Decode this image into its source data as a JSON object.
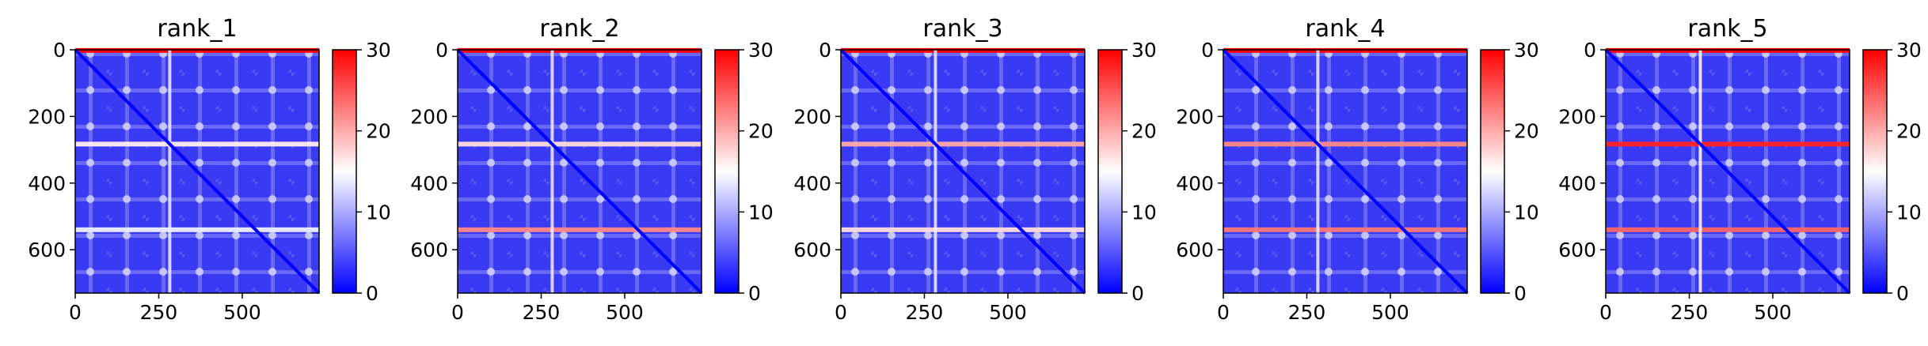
{
  "chart_data": [
    {
      "type": "heatmap",
      "title": "rank_1",
      "xlabel": "",
      "ylabel": "",
      "x_ticks": [
        0,
        250,
        500
      ],
      "y_ticks": [
        0,
        200,
        400,
        600
      ],
      "xlim": [
        0,
        730
      ],
      "ylim": [
        730,
        0
      ],
      "colorbar": {
        "min": 0,
        "max": 30,
        "ticks": [
          0,
          10,
          20,
          30
        ],
        "colormap": "bwr"
      },
      "highlights": [
        {
          "orientation": "horizontal",
          "position": 2,
          "value": 30
        },
        {
          "orientation": "horizontal",
          "position": 283,
          "value": 16
        },
        {
          "orientation": "horizontal",
          "position": 540,
          "value": 14
        },
        {
          "orientation": "vertical",
          "position": 283,
          "value": 14
        }
      ]
    },
    {
      "type": "heatmap",
      "title": "rank_2",
      "xlabel": "",
      "ylabel": "",
      "x_ticks": [
        0,
        250,
        500
      ],
      "y_ticks": [
        0,
        200,
        400,
        600
      ],
      "xlim": [
        0,
        730
      ],
      "ylim": [
        730,
        0
      ],
      "colorbar": {
        "min": 0,
        "max": 30,
        "ticks": [
          0,
          10,
          20,
          30
        ],
        "colormap": "bwr"
      },
      "highlights": [
        {
          "orientation": "horizontal",
          "position": 2,
          "value": 30
        },
        {
          "orientation": "horizontal",
          "position": 283,
          "value": 17
        },
        {
          "orientation": "horizontal",
          "position": 540,
          "value": 22
        },
        {
          "orientation": "vertical",
          "position": 283,
          "value": 14
        }
      ]
    },
    {
      "type": "heatmap",
      "title": "rank_3",
      "xlabel": "",
      "ylabel": "",
      "x_ticks": [
        0,
        250,
        500
      ],
      "y_ticks": [
        0,
        200,
        400,
        600
      ],
      "xlim": [
        0,
        730
      ],
      "ylim": [
        730,
        0
      ],
      "colorbar": {
        "min": 0,
        "max": 30,
        "ticks": [
          0,
          10,
          20,
          30
        ],
        "colormap": "bwr"
      },
      "highlights": [
        {
          "orientation": "horizontal",
          "position": 2,
          "value": 30
        },
        {
          "orientation": "horizontal",
          "position": 283,
          "value": 20
        },
        {
          "orientation": "horizontal",
          "position": 540,
          "value": 17
        },
        {
          "orientation": "vertical",
          "position": 283,
          "value": 14
        }
      ]
    },
    {
      "type": "heatmap",
      "title": "rank_4",
      "xlabel": "",
      "ylabel": "",
      "x_ticks": [
        0,
        250,
        500
      ],
      "y_ticks": [
        0,
        200,
        400,
        600
      ],
      "xlim": [
        0,
        730
      ],
      "ylim": [
        730,
        0
      ],
      "colorbar": {
        "min": 0,
        "max": 30,
        "ticks": [
          0,
          10,
          20,
          30
        ],
        "colormap": "bwr"
      },
      "highlights": [
        {
          "orientation": "horizontal",
          "position": 2,
          "value": 30
        },
        {
          "orientation": "horizontal",
          "position": 283,
          "value": 22
        },
        {
          "orientation": "horizontal",
          "position": 540,
          "value": 23
        },
        {
          "orientation": "vertical",
          "position": 283,
          "value": 14
        }
      ]
    },
    {
      "type": "heatmap",
      "title": "rank_5",
      "xlabel": "",
      "ylabel": "",
      "x_ticks": [
        0,
        250,
        500
      ],
      "y_ticks": [
        0,
        200,
        400,
        600
      ],
      "xlim": [
        0,
        730
      ],
      "ylim": [
        730,
        0
      ],
      "colorbar": {
        "min": 0,
        "max": 30,
        "ticks": [
          0,
          10,
          20,
          30
        ],
        "colormap": "bwr"
      },
      "highlights": [
        {
          "orientation": "horizontal",
          "position": 2,
          "value": 30
        },
        {
          "orientation": "horizontal",
          "position": 283,
          "value": 28
        },
        {
          "orientation": "horizontal",
          "position": 540,
          "value": 24
        },
        {
          "orientation": "vertical",
          "position": 283,
          "value": 15
        }
      ]
    }
  ]
}
